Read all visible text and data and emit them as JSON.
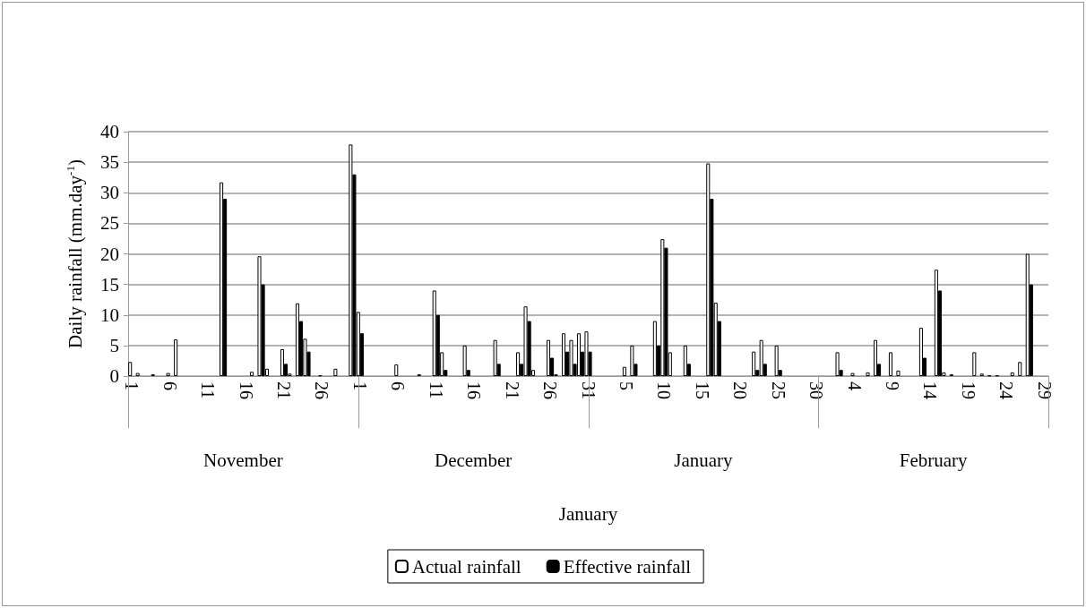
{
  "chart_data": {
    "type": "bar",
    "ylabel": "Daily rainfall (mm.day$^{-1}$)",
    "categories": [
      "1",
      null,
      null,
      null,
      null,
      "6",
      null,
      null,
      null,
      null,
      "11",
      null,
      null,
      null,
      null,
      "16",
      null,
      null,
      null,
      null,
      "21",
      null,
      null,
      null,
      null,
      "26",
      null,
      null,
      null,
      null,
      "1",
      null,
      null,
      null,
      null,
      "6",
      null,
      null,
      null,
      null,
      "11",
      null,
      null,
      null,
      null,
      "16",
      null,
      null,
      null,
      null,
      "21",
      null,
      null,
      null,
      null,
      "26",
      null,
      null,
      null,
      null,
      "31",
      null,
      null,
      null,
      null,
      "5",
      null,
      null,
      null,
      null,
      "10",
      null,
      null,
      null,
      null,
      "15",
      null,
      null,
      null,
      null,
      "20",
      null,
      null,
      null,
      null,
      "25",
      null,
      null,
      null,
      null,
      "30",
      null,
      null,
      null,
      null,
      "4",
      null,
      null,
      null,
      null,
      "9",
      null,
      null,
      null,
      null,
      "14",
      null,
      null,
      null,
      null,
      "19",
      null,
      null,
      null,
      null,
      "24",
      null,
      null,
      null,
      null,
      "29"
    ],
    "series": [
      {
        "name": "Actual rainfall",
        "color": "#ffffff",
        "values": [
          2.3,
          0.5,
          0,
          0.3,
          0,
          0.5,
          6,
          0,
          0,
          0,
          0,
          0,
          31.7,
          0,
          0,
          0,
          0.7,
          19.6,
          1.2,
          0,
          4.4,
          0.4,
          11.9,
          6.1,
          0,
          0.1,
          0,
          1.2,
          0,
          37.9,
          10.5,
          0,
          0,
          0,
          0,
          1.9,
          0,
          0,
          0.3,
          0,
          14,
          3.9,
          0,
          0,
          5,
          0,
          0,
          0,
          5.9,
          0,
          0,
          3.9,
          11.4,
          1,
          0,
          5.9,
          0.3,
          7,
          5.9,
          7,
          7.3,
          0,
          0,
          0,
          0,
          1.5,
          5,
          0,
          0,
          9,
          22.4,
          3.9,
          0,
          5,
          0,
          0,
          34.8,
          12,
          0,
          0,
          0,
          0,
          4,
          5.9,
          0,
          5,
          0,
          0,
          0,
          0,
          0,
          0,
          0,
          3.9,
          0,
          0.5,
          0,
          0.6,
          5.9,
          0,
          3.9,
          0.9,
          0,
          0,
          7.9,
          0,
          17.4,
          0.6,
          0.3,
          0,
          0,
          3.9,
          0.4,
          0.1,
          0.1,
          0,
          0.6,
          2.3,
          20,
          0,
          0
        ]
      },
      {
        "name": "Effective rainfall",
        "color": "#000000",
        "values": [
          0,
          0,
          0,
          0,
          0,
          0,
          0,
          0,
          0,
          0,
          0,
          0,
          29,
          0,
          0,
          0,
          0,
          15,
          0,
          0,
          2,
          0,
          9,
          4,
          0,
          0,
          0,
          0,
          0,
          33,
          7,
          0,
          0,
          0,
          0,
          0,
          0,
          0,
          0,
          0,
          10,
          1,
          0,
          0,
          1,
          0,
          0,
          0,
          2,
          0,
          0,
          2,
          9,
          0,
          0,
          3,
          0,
          4,
          2,
          4,
          4,
          0,
          0,
          0,
          0,
          0,
          2,
          0,
          0,
          5,
          21,
          0,
          0,
          2,
          0,
          0,
          29,
          9,
          0,
          0,
          0,
          0,
          1,
          2,
          0,
          1,
          0,
          0,
          0,
          0,
          0,
          0,
          0,
          1,
          0,
          0,
          0,
          0,
          2,
          0,
          0,
          0,
          0,
          0,
          3,
          0,
          14,
          0,
          0,
          0,
          0,
          0,
          0,
          0,
          0,
          0,
          0,
          0,
          15,
          0,
          0
        ]
      }
    ],
    "ylim": [
      0,
      40
    ],
    "yticks": [
      0,
      5,
      10,
      15,
      20,
      25,
      30,
      35,
      40
    ],
    "grid": "y",
    "legend": "bottom",
    "annotations": [
      "November",
      "December",
      "January",
      "February",
      "January"
    ]
  }
}
